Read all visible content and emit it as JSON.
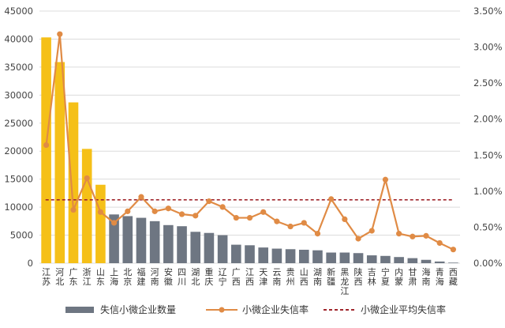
{
  "chart_data": {
    "type": "bar",
    "categories": [
      "江苏",
      "河北",
      "广东",
      "浙江",
      "山东",
      "上海",
      "北京",
      "福建",
      "河南",
      "安徽",
      "四川",
      "湖北",
      "重庆",
      "辽宁",
      "广西",
      "江西",
      "天津",
      "云南",
      "贵州",
      "山西",
      "湖南",
      "新疆",
      "黑龙江",
      "陕西",
      "吉林",
      "宁夏",
      "内蒙",
      "甘肃",
      "海南",
      "青海",
      "西藏"
    ],
    "series": [
      {
        "name": "失信小微企业数量",
        "chart": "bar",
        "axis": "left",
        "values": [
          40300,
          35900,
          28700,
          20400,
          14000,
          8700,
          8400,
          8100,
          7500,
          6800,
          6600,
          5600,
          5400,
          5000,
          3300,
          3200,
          2800,
          2600,
          2500,
          2400,
          2300,
          1900,
          1900,
          1800,
          1400,
          1300,
          1100,
          900,
          600,
          300,
          100
        ],
        "highlight_count": 5,
        "highlight_color": "#F5C018",
        "color": "#6E7682"
      },
      {
        "name": "小微企业失信率",
        "chart": "line",
        "axis": "right",
        "values": [
          0.0164,
          0.0318,
          0.0074,
          0.0118,
          0.0071,
          0.0056,
          0.0072,
          0.0092,
          0.0072,
          0.0076,
          0.0068,
          0.0066,
          0.0086,
          0.0078,
          0.0063,
          0.0063,
          0.0071,
          0.0058,
          0.0051,
          0.0056,
          0.0041,
          0.0089,
          0.0061,
          0.0034,
          0.0045,
          0.0116,
          0.0041,
          0.0037,
          0.0038,
          0.0028,
          0.0019
        ],
        "color": "#E08B45"
      },
      {
        "name": "小微企业平均失信率",
        "chart": "reference-line",
        "axis": "right",
        "value": 0.0088,
        "color": "#A0262C"
      }
    ],
    "y_left": {
      "lim": [
        0,
        45000
      ],
      "ticks": [
        "0",
        "5000",
        "10000",
        "15000",
        "20000",
        "25000",
        "30000",
        "35000",
        "40000",
        "45000"
      ]
    },
    "y_right": {
      "lim": [
        0,
        0.035
      ],
      "ticks": [
        "0.00%",
        "0.50%",
        "1.00%",
        "1.50%",
        "2.00%",
        "2.50%",
        "3.00%",
        "3.50%"
      ]
    },
    "grid": true,
    "legend_position": "bottom"
  }
}
